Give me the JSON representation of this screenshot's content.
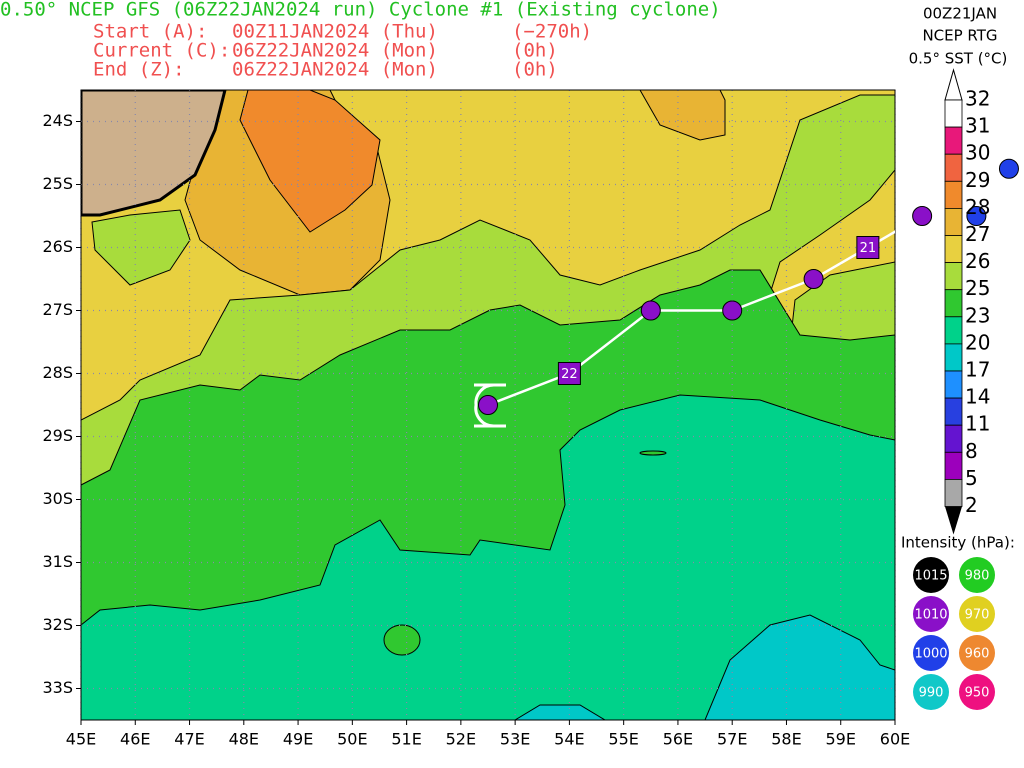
{
  "header": {
    "title": "0.50° NCEP GFS (06Z22JAN2024 run) Cyclone #1 (Existing cyclone)",
    "lines": [
      [
        "Start (A):",
        "00Z11JAN2024 (Thu)",
        "(−270h)"
      ],
      [
        "Current (C):",
        "06Z22JAN2024 (Mon)",
        "(0h)"
      ],
      [
        "End (Z):",
        "06Z22JAN2024 (Mon)",
        "(0h)"
      ]
    ]
  },
  "sst": {
    "date": "00Z21JAN",
    "source": "NCEP RTG",
    "title": "0.5° SST (°C)",
    "levels": [
      32,
      31,
      30,
      29,
      28,
      27,
      26,
      25,
      23,
      20,
      17,
      14,
      11,
      8,
      5,
      2
    ],
    "colors": [
      "#ffffff",
      "#e8187a",
      "#f06440",
      "#f08a2c",
      "#e8b434",
      "#e8d040",
      "#a8dc3c",
      "#30c830",
      "#00d28a",
      "#00c8c8",
      "#1e90ff",
      "#2840e0",
      "#6414d0",
      "#9c00bc",
      "#a8a8a8"
    ]
  },
  "intensity": {
    "title": "Intensity (hPa):",
    "values": [
      1015,
      980,
      1010,
      970,
      1000,
      960,
      990,
      950
    ],
    "colors": [
      "#000000",
      "#22cc22",
      "#8a10c8",
      "#e0d020",
      "#2040e8",
      "#ee8830",
      "#10c8c8",
      "#ee1080"
    ]
  },
  "map": {
    "lonlim": [
      45,
      60
    ],
    "latlim": [
      -33.5,
      -23.5
    ],
    "lon_ticks": [
      {
        "value": 45,
        "label": "45E"
      },
      {
        "value": 46,
        "label": "46E"
      },
      {
        "value": 47,
        "label": "47E"
      },
      {
        "value": 48,
        "label": "48E"
      },
      {
        "value": 49,
        "label": "49E"
      },
      {
        "value": 50,
        "label": "50E"
      },
      {
        "value": 51,
        "label": "51E"
      },
      {
        "value": 52,
        "label": "52E"
      },
      {
        "value": 53,
        "label": "53E"
      },
      {
        "value": 54,
        "label": "54E"
      },
      {
        "value": 55,
        "label": "55E"
      },
      {
        "value": 56,
        "label": "56E"
      },
      {
        "value": 57,
        "label": "57E"
      },
      {
        "value": 58,
        "label": "58E"
      },
      {
        "value": 59,
        "label": "59E"
      },
      {
        "value": 60,
        "label": "60E"
      }
    ],
    "lat_ticks": [
      {
        "value": -24,
        "label": "24S"
      },
      {
        "value": -25,
        "label": "25S"
      },
      {
        "value": -26,
        "label": "26S"
      },
      {
        "value": -27,
        "label": "27S"
      },
      {
        "value": -28,
        "label": "28S"
      },
      {
        "value": -29,
        "label": "29S"
      },
      {
        "value": -30,
        "label": "30S"
      },
      {
        "value": -31,
        "label": "31S"
      },
      {
        "value": -32,
        "label": "32S"
      },
      {
        "value": -33,
        "label": "33S"
      }
    ],
    "track": [
      {
        "lon": 52.5,
        "lat": -28.5,
        "intensity": 1010
      },
      {
        "lon": 54,
        "lat": -28,
        "label": "22"
      },
      {
        "lon": 55.5,
        "lat": -27,
        "intensity": 1010
      },
      {
        "lon": 57,
        "lat": -27,
        "intensity": 1010
      },
      {
        "lon": 58.5,
        "lat": -26.5,
        "intensity": 1010
      },
      {
        "lon": 59.5,
        "lat": -26,
        "label": "21"
      },
      {
        "lon": 60.5,
        "lat": -25.5,
        "intensity": 1010
      },
      {
        "lon": 61.5,
        "lat": -25.5,
        "intensity": 1000
      },
      {
        "lon": 62.1,
        "lat": -24.75,
        "intensity": 1000
      }
    ]
  }
}
